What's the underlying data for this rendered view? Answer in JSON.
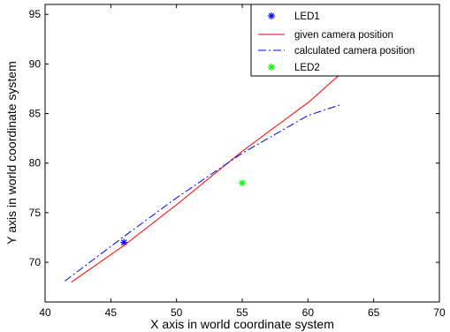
{
  "chart_data": {
    "type": "line",
    "xlabel": "X axis in world coordinate system",
    "ylabel": "Y axis in world coordinate system",
    "xlim": [
      40,
      70
    ],
    "ylim": [
      66,
      96
    ],
    "xticks": [
      40,
      45,
      50,
      55,
      60,
      65,
      70
    ],
    "yticks": [
      70,
      75,
      80,
      85,
      90,
      95
    ],
    "grid": false,
    "legend_position": "top-right",
    "series": [
      {
        "name": "LED1",
        "kind": "marker",
        "marker": "*",
        "color": "#0000ff",
        "x": [
          46
        ],
        "y": [
          72
        ]
      },
      {
        "name": "given camera position",
        "kind": "line",
        "style": "solid",
        "color": "#ff0000",
        "x": [
          42,
          46,
          50,
          55,
          60,
          63
        ],
        "y": [
          68,
          71.7,
          75.8,
          81.2,
          86.1,
          89.6
        ]
      },
      {
        "name": "calculated camera position",
        "kind": "line",
        "style": "dashdot",
        "color": "#0000ff",
        "x": [
          41.5,
          46,
          50,
          55,
          60,
          62.5
        ],
        "y": [
          68.1,
          72.6,
          76.5,
          81,
          84.8,
          85.9
        ]
      },
      {
        "name": "LED2",
        "kind": "marker",
        "marker": "*",
        "color": "#00ff00",
        "x": [
          55
        ],
        "y": [
          78
        ]
      }
    ]
  }
}
